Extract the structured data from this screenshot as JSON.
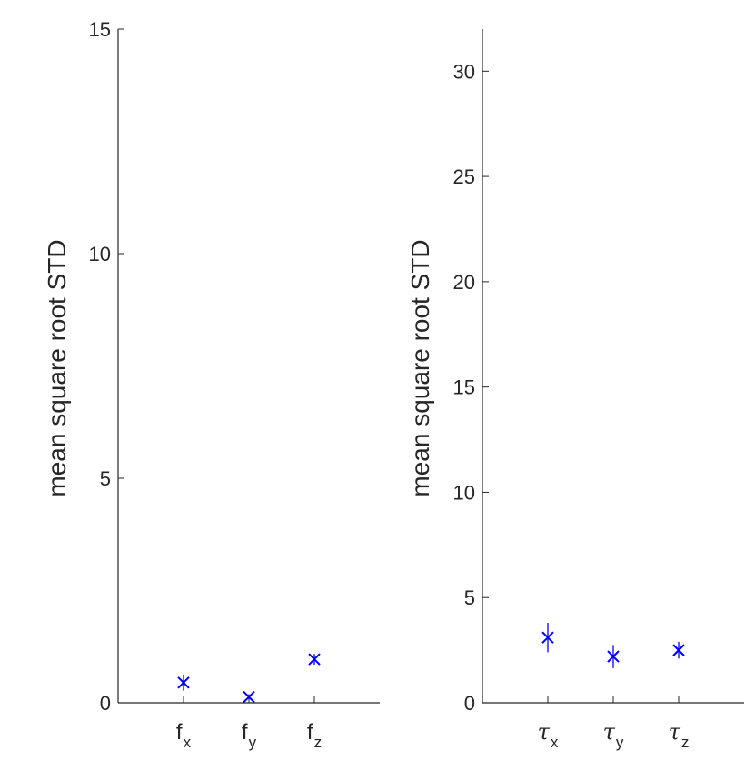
{
  "chart_data": [
    {
      "type": "scatter",
      "marker": "x",
      "marker_color": "#0000ff",
      "ylabel": "mean square root STD",
      "ylim": [
        0,
        15
      ],
      "yticks": [
        0,
        5,
        10,
        15
      ],
      "grid": false,
      "categories": [
        {
          "base": "f",
          "sub": "x",
          "greek": false
        },
        {
          "base": "f",
          "sub": "y",
          "greek": false
        },
        {
          "base": "f",
          "sub": "z",
          "greek": false
        }
      ],
      "values": [
        0.45,
        0.13,
        0.97
      ],
      "errors": [
        0.18,
        0.06,
        0.12
      ]
    },
    {
      "type": "scatter",
      "marker": "x",
      "marker_color": "#0000ff",
      "ylabel": "mean square root STD",
      "ylim": [
        0,
        32
      ],
      "yticks": [
        0,
        5,
        10,
        15,
        20,
        25,
        30
      ],
      "grid": false,
      "categories": [
        {
          "base": "τ",
          "sub": "x",
          "greek": true
        },
        {
          "base": "τ",
          "sub": "y",
          "greek": true
        },
        {
          "base": "τ",
          "sub": "z",
          "greek": true
        }
      ],
      "values": [
        3.1,
        2.2,
        2.5
      ],
      "errors": [
        0.7,
        0.55,
        0.4
      ]
    }
  ]
}
